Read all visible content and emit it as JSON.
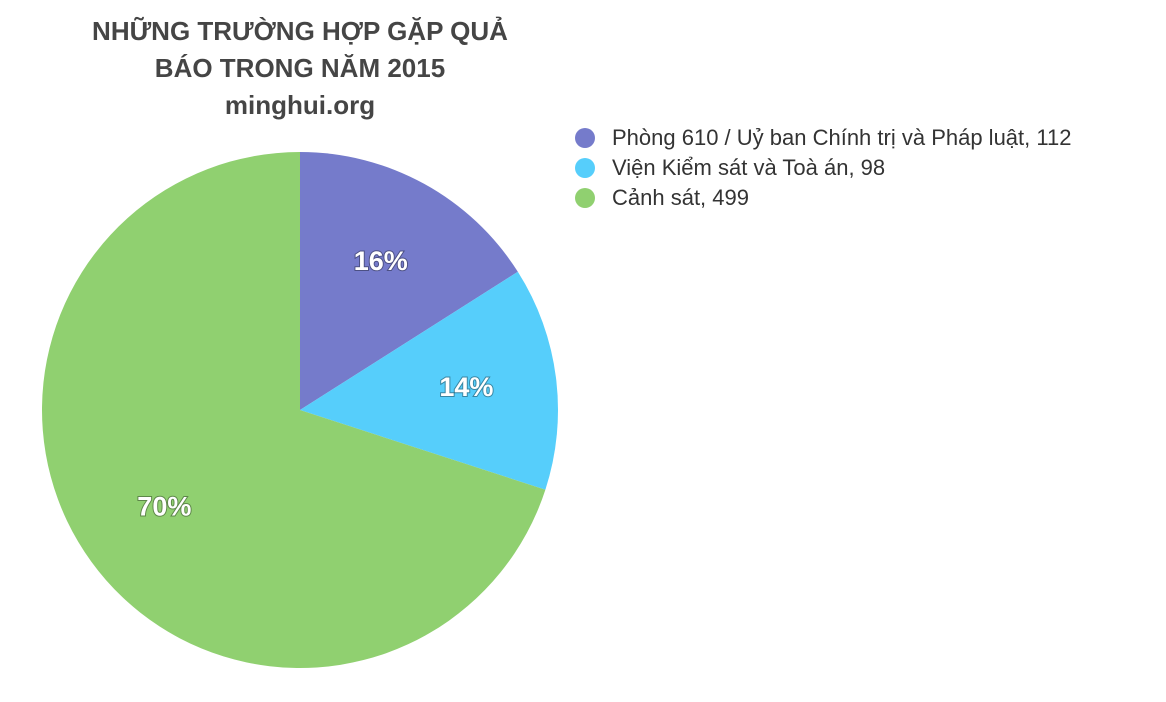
{
  "chart_data": {
    "type": "pie",
    "title_lines": [
      "NHỮNG TRƯỜNG HỢP GẶP QUẢ",
      "BÁO TRONG NĂM 2015",
      "minghui.org"
    ],
    "categories": [
      "Phòng 610 / Uỷ ban Chính trị và Pháp luật, 112",
      "Viện Kiểm sát và Toà án, 98",
      "Cảnh sát, 499"
    ],
    "values": [
      16,
      14,
      70
    ],
    "value_labels": [
      "16%",
      "14%",
      "70%"
    ],
    "colors": [
      "#757bcb",
      "#56cefb",
      "#90d070"
    ],
    "legend": "top-right"
  }
}
